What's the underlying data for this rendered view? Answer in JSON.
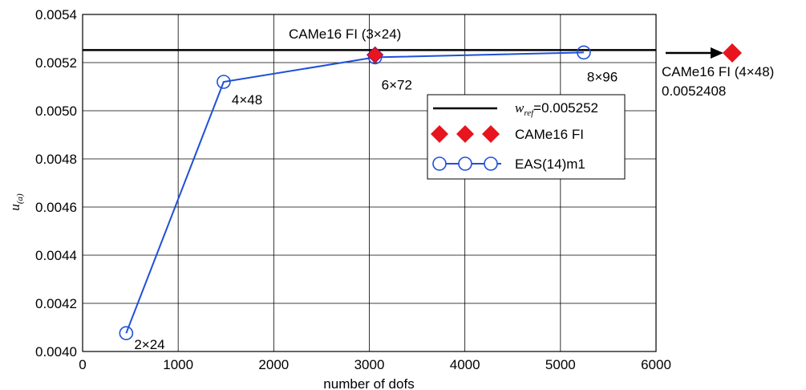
{
  "chart_data": {
    "type": "line",
    "xlabel": "number of dofs",
    "ylabel": "u",
    "ylabel_sub": "(a)",
    "xlim": [
      0,
      6000
    ],
    "ylim": [
      0.004,
      0.0054
    ],
    "xticks": [
      0,
      1000,
      2000,
      3000,
      4000,
      5000,
      6000
    ],
    "xtick_labels": [
      "0",
      "1000",
      "2000",
      "3000",
      "4000",
      "5000",
      "6000"
    ],
    "yticks": [
      0.004,
      0.0042,
      0.0044,
      0.0046,
      0.0048,
      0.005,
      0.0052,
      0.0054
    ],
    "ytick_labels": [
      "0.0040",
      "0.0042",
      "0.0044",
      "0.0046",
      "0.0048",
      "0.0050",
      "0.0052",
      "0.0054"
    ],
    "grid": true,
    "legend_position": "right",
    "reference": {
      "y": 0.005252,
      "label_var": "w",
      "label_sub": "ref",
      "label_value": "=0.005252",
      "color": "#000000"
    },
    "series": [
      {
        "name": "EAS(14)m1",
        "marker": "circle",
        "color": "#1f4fd8",
        "x": [
          456,
          1476,
          3060,
          5244
        ],
        "y": [
          0.004076,
          0.00512,
          0.005222,
          0.005242
        ],
        "point_labels": [
          "2×24",
          "4×48",
          "6×72",
          "8×96"
        ]
      },
      {
        "name": "CAMe16 FI",
        "marker": "diamond",
        "color": "#e8141e",
        "x": [
          3060
        ],
        "y": [
          0.005232
        ]
      }
    ],
    "annotations": {
      "inside_label": "CAMe16 FI (3×24)",
      "outside_label": "CAMe16 FI (4×48)",
      "outside_value": "0.0052408"
    }
  }
}
